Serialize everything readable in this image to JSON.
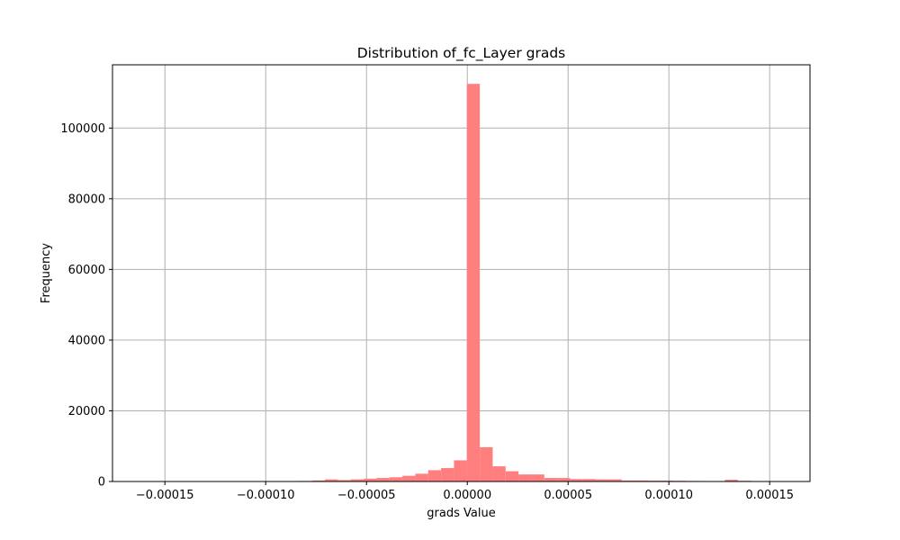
{
  "chart_data": {
    "type": "bar",
    "title": "Distribution of_fc_Layer grads",
    "xlabel": "grads Value",
    "ylabel": "Frequency",
    "grid": true,
    "bar_color": "#ff7f7f",
    "xlim": [
      -0.000176,
      0.00017
    ],
    "ylim": [
      0,
      117900
    ],
    "x_ticks": [
      {
        "value": -0.00015,
        "label": "−0.00015"
      },
      {
        "value": -0.0001,
        "label": "−0.00010"
      },
      {
        "value": -5e-05,
        "label": "−0.00005"
      },
      {
        "value": 0.0,
        "label": "0.00000"
      },
      {
        "value": 5e-05,
        "label": "0.00005"
      },
      {
        "value": 0.0001,
        "label": "0.00010"
      },
      {
        "value": 0.00015,
        "label": "0.00015"
      }
    ],
    "y_ticks": [
      {
        "value": 0,
        "label": "0"
      },
      {
        "value": 20000,
        "label": "20000"
      },
      {
        "value": 40000,
        "label": "40000"
      },
      {
        "value": 60000,
        "label": "60000"
      },
      {
        "value": 80000,
        "label": "80000"
      },
      {
        "value": 100000,
        "label": "100000"
      }
    ],
    "bin_start": -0.0001602,
    "bin_width": 6.4e-06,
    "values": [
      50,
      20,
      20,
      20,
      20,
      20,
      20,
      30,
      30,
      30,
      40,
      60,
      150,
      300,
      600,
      400,
      600,
      800,
      1000,
      1200,
      1600,
      2200,
      3200,
      3800,
      6000,
      112500,
      9700,
      4300,
      2900,
      2000,
      2000,
      1000,
      1000,
      700,
      700,
      600,
      600,
      300,
      300,
      250,
      250,
      200,
      150,
      100,
      100,
      500,
      200,
      50,
      50,
      20
    ]
  }
}
